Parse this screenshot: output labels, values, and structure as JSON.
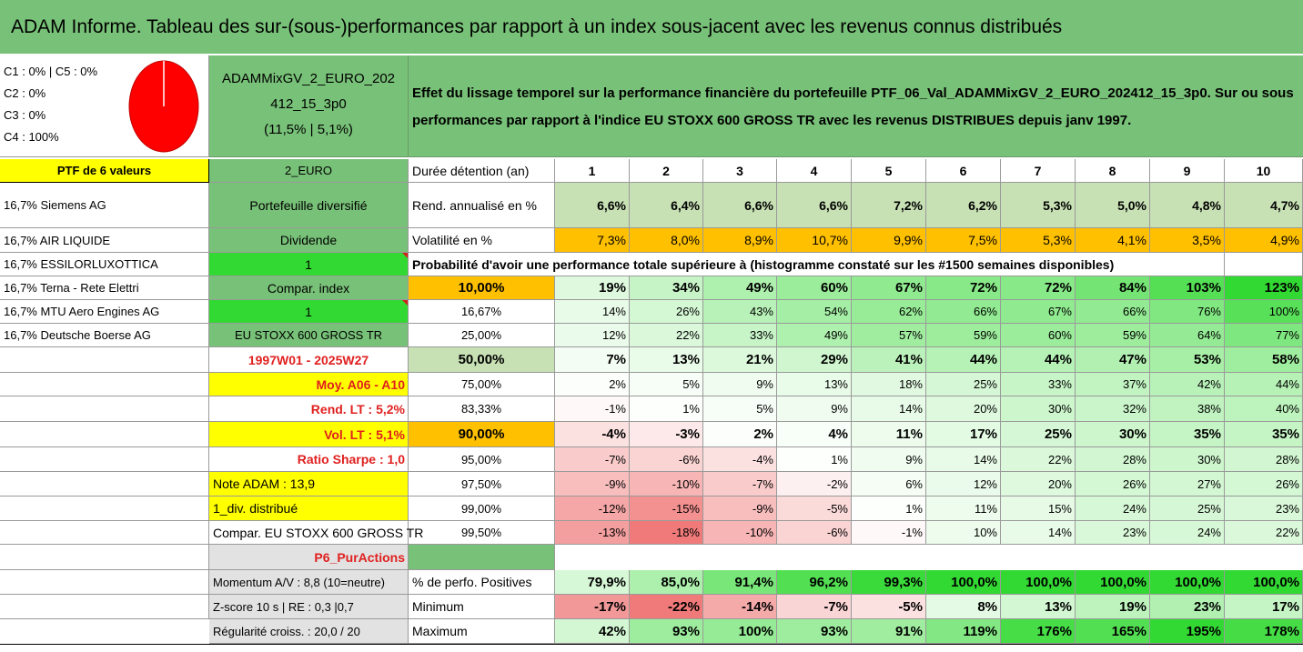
{
  "title": "ADAM Informe. Tableau des sur-(sous-)performances par rapport à un index sous-jacent avec les revenus connus distribués",
  "pie": {
    "lines": [
      "C1 : 0% | C5 : 0%",
      "C2 : 0%",
      "C3 : 0%",
      "C4 : 100%"
    ],
    "slices": [
      {
        "name": "C4",
        "value": 100,
        "color": "#ff0000"
      }
    ]
  },
  "fund": {
    "line1": "ADAMMixGV_2_EURO_202",
    "line2": "412_15_3p0",
    "line3": "(11,5% | 5,1%)"
  },
  "description": "Effet du lissage temporel sur la performance financière du portefeuille PTF_06_Val_ADAMMixGV_2_EURO_202412_15_3p0. Sur ou sous performances par rapport à l'indice EU STOXX 600 GROSS TR avec les revenus DISTRIBUES depuis janv 1997.",
  "portfolio": {
    "header": "PTF de 6 valeurs",
    "holdings": [
      "16,7% Siemens AG",
      "16,7% AIR LIQUIDE",
      "16,7% ESSILORLUXOTTICA",
      "16,7% Terna - Rete Elettri",
      "16,7% MTU Aero Engines AG",
      "16,7% Deutsche Boerse AG"
    ]
  },
  "info": {
    "currency": "2_EURO",
    "type": "Portefeuille diversifié",
    "dividend_label": "Dividende",
    "dividend_value": "1",
    "compar_label": "Compar. index",
    "compar_value": "1",
    "index_name": "EU STOXX 600 GROSS TR",
    "period": "1997W01 - 2025W27",
    "moy": "Moy. A06 - A10",
    "rend_lt": "Rend. LT : 5,2%",
    "vol_lt": "Vol. LT : 5,1%",
    "sharpe": "Ratio Sharpe : 1,0",
    "note": "Note ADAM : 13,9",
    "div_distrib": "1_div. distribué",
    "compar_full": "Compar. EU STOXX 600 GROSS TR",
    "puractions": "P6_PurActions",
    "momentum": "Momentum A/V : 8,8 (10=neutre)",
    "zscore": "Z-score 10 s | RE : 0,3 |0,7",
    "regularite": "Régularité croiss. : 20,0 / 20"
  },
  "table": {
    "duration_label": "Durée détention (an)",
    "years": [
      "1",
      "2",
      "3",
      "4",
      "5",
      "6",
      "7",
      "8",
      "9",
      "10"
    ],
    "rend_label": "Rend. annualisé en %",
    "rend": [
      "6,6%",
      "6,4%",
      "6,6%",
      "6,6%",
      "7,2%",
      "6,2%",
      "5,3%",
      "5,0%",
      "4,8%",
      "4,7%"
    ],
    "vol_label": "Volatilité en %",
    "vol": [
      "7,3%",
      "8,0%",
      "8,9%",
      "10,7%",
      "9,9%",
      "7,5%",
      "5,3%",
      "4,1%",
      "3,5%",
      "4,9%"
    ],
    "prob_label": "Probabilité d'avoir une performance totale supérieure à (histogramme constaté sur les #1500 semaines disponibles)",
    "prob_rows": [
      {
        "p": "10,00%",
        "v": [
          "19%",
          "34%",
          "49%",
          "60%",
          "67%",
          "72%",
          "72%",
          "84%",
          "103%",
          "123%"
        ]
      },
      {
        "p": "16,67%",
        "v": [
          "14%",
          "26%",
          "43%",
          "54%",
          "62%",
          "66%",
          "67%",
          "66%",
          "76%",
          "100%"
        ]
      },
      {
        "p": "25,00%",
        "v": [
          "12%",
          "22%",
          "33%",
          "49%",
          "57%",
          "59%",
          "60%",
          "59%",
          "64%",
          "77%"
        ]
      },
      {
        "p": "50,00%",
        "v": [
          "7%",
          "13%",
          "21%",
          "29%",
          "41%",
          "44%",
          "44%",
          "47%",
          "53%",
          "58%"
        ]
      },
      {
        "p": "75,00%",
        "v": [
          "2%",
          "5%",
          "9%",
          "13%",
          "18%",
          "25%",
          "33%",
          "37%",
          "42%",
          "44%"
        ]
      },
      {
        "p": "83,33%",
        "v": [
          "-1%",
          "1%",
          "5%",
          "9%",
          "14%",
          "20%",
          "30%",
          "32%",
          "38%",
          "40%"
        ]
      },
      {
        "p": "90,00%",
        "v": [
          "-4%",
          "-3%",
          "2%",
          "4%",
          "11%",
          "17%",
          "25%",
          "30%",
          "35%",
          "35%"
        ]
      },
      {
        "p": "95,00%",
        "v": [
          "-7%",
          "-6%",
          "-4%",
          "1%",
          "9%",
          "14%",
          "22%",
          "28%",
          "30%",
          "28%"
        ]
      },
      {
        "p": "97,50%",
        "v": [
          "-9%",
          "-10%",
          "-7%",
          "-2%",
          "6%",
          "12%",
          "20%",
          "26%",
          "27%",
          "26%"
        ]
      },
      {
        "p": "99,00%",
        "v": [
          "-12%",
          "-15%",
          "-9%",
          "-5%",
          "1%",
          "11%",
          "15%",
          "24%",
          "25%",
          "23%"
        ]
      },
      {
        "p": "99,50%",
        "v": [
          "-13%",
          "-18%",
          "-10%",
          "-6%",
          "-1%",
          "10%",
          "14%",
          "23%",
          "24%",
          "22%"
        ]
      }
    ],
    "pos_label": "% de perfo. Positives",
    "pos": [
      "79,9%",
      "85,0%",
      "91,4%",
      "96,2%",
      "99,3%",
      "100,0%",
      "100,0%",
      "100,0%",
      "100,0%",
      "100,0%"
    ],
    "min_label": "Minimum",
    "min": [
      "-17%",
      "-22%",
      "-14%",
      "-7%",
      "-5%",
      "8%",
      "13%",
      "19%",
      "23%",
      "17%"
    ],
    "max_label": "Maximum",
    "max": [
      "42%",
      "93%",
      "100%",
      "93%",
      "91%",
      "119%",
      "176%",
      "165%",
      "195%",
      "178%"
    ]
  },
  "colors": {
    "title_green": "#78c178",
    "mid_green": "#78c178",
    "bright_green": "#33d933",
    "yellow": "#ffff00",
    "orange": "#ffc000",
    "red_text": "#e0201f",
    "grey_header": "#e2e2e2",
    "rend_fill": "#c7e0b4"
  }
}
